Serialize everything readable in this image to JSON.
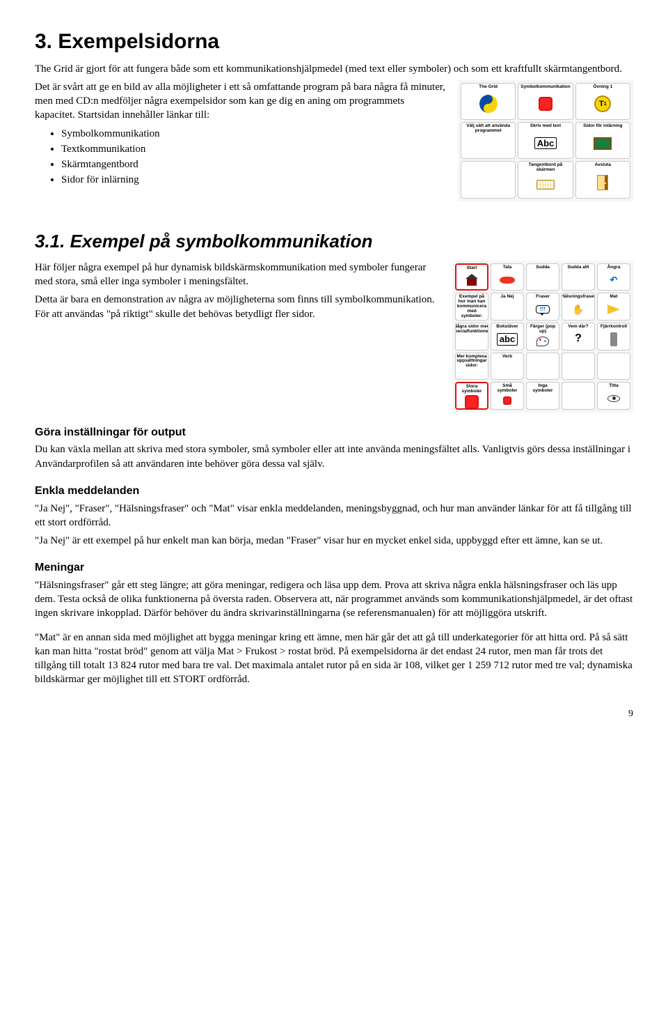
{
  "title_1": "3. Exempelsidorna",
  "intro_1": "The Grid är gjort för att fungera både som ett kommunikationshjälpmedel (med text eller symboler) och som ett kraftfullt skärmtangentbord.",
  "intro_2": "Det är svårt att ge en bild av alla möjligheter i ett så omfattande program på bara några få minuter, men med CD:n medföljer några exempelsidor som kan ge dig en aning om programmets kapacitet. Startsidan innehåller länkar till:",
  "start_links": [
    "Symbolkommunikation",
    "Textkommunikation",
    "Skärmtangentbord",
    "Sidor för inlärning"
  ],
  "gridA": {
    "cells": [
      {
        "label": "The Grid",
        "icon": "yinyang"
      },
      {
        "label": "Symbolkommunikation",
        "icon": "sqRed"
      },
      {
        "label": "Övning 1",
        "icon": "t1"
      },
      {
        "label": "Välj sätt att använda programmet",
        "icon": ""
      },
      {
        "label": "Skriv med text",
        "icon": "Abc"
      },
      {
        "label": "Sidor för inlärning",
        "icon": "chalk"
      },
      {
        "label": "",
        "icon": ""
      },
      {
        "label": "Tangentbord på skärmen",
        "icon": "kb"
      },
      {
        "label": "Avsluta",
        "icon": "door"
      }
    ]
  },
  "title_2": "3.1. Exempel på symbolkommunikation",
  "sec31_p1": "Här följer några exempel på hur dynamisk bildskärmskommunikation med symboler fungerar med stora, små eller inga symboler i meningsfältet.",
  "sec31_p2": "Detta är bara en demonstration av några av möjligheterna som finns till symbolkommunikation. För att användas \"på riktigt\" skulle det behövas betydligt fler sidor.",
  "gridB": {
    "cells": [
      {
        "label": "Start",
        "icon": "house",
        "border": "red"
      },
      {
        "label": "Tala",
        "icon": "lips"
      },
      {
        "label": "Sudda",
        "icon": ""
      },
      {
        "label": "Sudda allt",
        "icon": ""
      },
      {
        "label": "Ångra",
        "icon": "undo"
      },
      {
        "label": "Exempel på hur man kan kommunicera med symboler:",
        "icon": "",
        "span": 1
      },
      {
        "label": "Ja Nej",
        "icon": ""
      },
      {
        "label": "Fraser",
        "icon": "bubble"
      },
      {
        "label": "Hälsningsfraser",
        "icon": "hand"
      },
      {
        "label": "Mat",
        "icon": "cheese"
      },
      {
        "label": "Några sidor med specialfunktioner:",
        "icon": ""
      },
      {
        "label": "Bokstäver",
        "icon": "abc"
      },
      {
        "label": "Färger (pop up)",
        "icon": "palette"
      },
      {
        "label": "Vem där?",
        "icon": "question"
      },
      {
        "label": "Fjärrkontroll",
        "icon": "remote"
      },
      {
        "label": "Mer komplexa uppsättningar sidor:",
        "icon": ""
      },
      {
        "label": "Verb",
        "icon": ""
      },
      {
        "label": "",
        "icon": ""
      },
      {
        "label": "",
        "icon": ""
      },
      {
        "label": "",
        "icon": ""
      },
      {
        "label": "Stora symboler",
        "icon": "sqRed",
        "border": "red"
      },
      {
        "label": "Små symboler",
        "icon": "sqRedSm"
      },
      {
        "label": "Inga symboler",
        "icon": ""
      },
      {
        "label": "",
        "icon": ""
      },
      {
        "label": "Titta",
        "icon": "eye"
      }
    ]
  },
  "h_output": "Göra inställningar för output",
  "p_output": "Du kan växla mellan att skriva med stora symboler, små symboler eller att inte använda meningsfältet alls. Vanligtvis görs dessa inställningar i Användarprofilen så att användaren inte behöver göra dessa val själv.",
  "h_enkla": "Enkla meddelanden",
  "p_enkla_1": "\"Ja Nej\", \"Fraser\", \"Hälsningsfraser\" och \"Mat\" visar enkla meddelanden, meningsbyggnad, och hur man använder länkar för att få tillgång till ett stort ordförråd.",
  "p_enkla_2": "\"Ja Nej\" är ett exempel på hur enkelt man kan börja, medan \"Fraser\" visar hur en mycket enkel sida, uppbyggd efter ett ämne, kan se ut.",
  "h_meningar": "Meningar",
  "p_meningar_1": "\"Hälsningsfraser\" går ett steg längre; att göra meningar, redigera och läsa upp dem. Prova att skriva några enkla hälsningsfraser och läs upp dem. Testa också de olika funktionerna på översta raden. Observera att, när programmet används som kommunikationshjälpmedel, är det oftast ingen skrivare inkopplad. Därför behöver du ändra skrivarinställningarna (se referensmanualen) för att möjliggöra utskrift.",
  "p_meningar_2": "\"Mat\" är en annan sida med möjlighet att bygga meningar kring ett ämne, men här går det att gå till underkategorier för att hitta ord. På så sätt kan man hitta \"rostat bröd\" genom att välja Mat > Frukost > rostat bröd. På exempelsidorna är det endast 24 rutor, men man får trots det tillgång till totalt 13 824 rutor med bara tre val. Det maximala antalet rutor på en sida är 108, vilket ger 1 259 712 rutor med tre val; dynamiska bildskärmar ger möjlighet till ett STORT ordförråd.",
  "page_number": "9"
}
